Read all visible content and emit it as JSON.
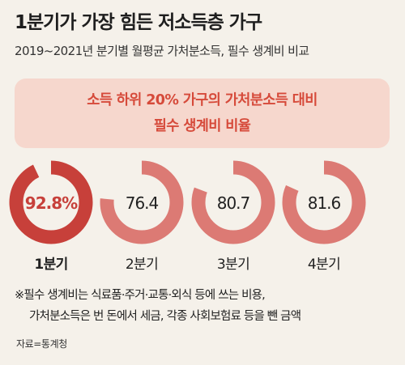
{
  "title": "1분기가 가장 힘든 저소득층 가구",
  "subtitle": "2019~2021년 분기별 월평균 가처분소득, 필수 생계비 비교",
  "banner": {
    "line1": "소득 하위 20% 가구의 가처분소득 대비",
    "line2": "필수 생계비 비율"
  },
  "chart_data": {
    "type": "donut",
    "categories": [
      "1분기",
      "2분기",
      "3분기",
      "4분기"
    ],
    "values": [
      92.8,
      76.4,
      80.7,
      81.6
    ],
    "value_labels": [
      "92.8%",
      "76.4",
      "80.7",
      "81.6"
    ],
    "max": 100,
    "highlight_index": 0,
    "colors": {
      "highlight": "#c7403a",
      "normal": "#dc7a74",
      "track": "#f5f1ea",
      "highlight_text": "#c7403a",
      "text": "#222222"
    }
  },
  "footnote": {
    "line1": "※필수 생계비는 식료품·주거·교통·외식 등에 쓰는 비용,",
    "line2": "가처분소득은 번 돈에서 세금, 각종 사회보험료 등을 뺀 금액"
  },
  "source": "자료=통계청"
}
